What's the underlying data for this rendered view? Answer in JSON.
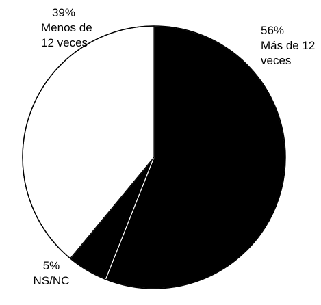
{
  "chart_data": {
    "type": "pie",
    "categories": [
      "Más de 12 veces",
      "NS/NC",
      "Menos de 12 veces"
    ],
    "values": [
      56,
      5,
      39
    ],
    "value_labels": [
      "56%",
      "5%",
      "39%"
    ],
    "colors": [
      "#000000",
      "#000000",
      "#ffffff"
    ]
  }
}
